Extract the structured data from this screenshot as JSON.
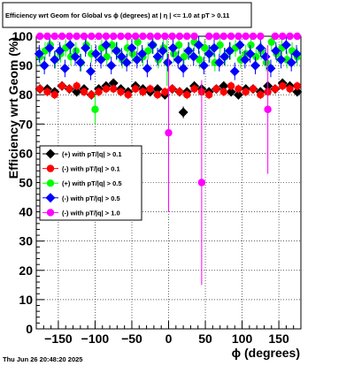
{
  "chart_data": {
    "type": "scatter",
    "title": "Efficiency wrt Geom for Global vs ϕ (degrees) at |  η  | <= 1.0 at pT > 0.11",
    "xlabel": "ϕ (degrees)",
    "ylabel": "Efficiency wrt Geom (%)",
    "xlim": [
      -180,
      180
    ],
    "ylim": [
      0,
      100
    ],
    "x_ticks": [
      -150,
      -100,
      -50,
      0,
      50,
      100,
      150
    ],
    "x_tick_labels": [
      "−150",
      "−100",
      "−50",
      "0",
      "50",
      "100",
      "150"
    ],
    "y_ticks": [
      0,
      10,
      20,
      30,
      40,
      50,
      60,
      70,
      80,
      90,
      100
    ],
    "y_tick_labels": [
      "0",
      "10",
      "20",
      "30",
      "40",
      "50",
      "60",
      "70",
      "80",
      "90",
      "100"
    ],
    "grid": true,
    "legend_position": "center-left",
    "footer": "Thu Jun 26 20:48:20 2025",
    "series": [
      {
        "name": "(+) with pT/|q| > 0.1",
        "color": "#000000",
        "marker": "diamond",
        "x": [
          -175,
          -165,
          -155,
          -145,
          -135,
          -125,
          -115,
          -105,
          -95,
          -85,
          -75,
          -65,
          -55,
          -45,
          -35,
          -25,
          -15,
          -5,
          5,
          15,
          20,
          25,
          35,
          45,
          55,
          65,
          75,
          85,
          95,
          105,
          115,
          125,
          135,
          145,
          155,
          165,
          175
        ],
        "y": [
          82,
          82,
          81,
          83,
          82,
          81,
          82,
          80,
          82,
          83,
          84,
          82,
          81,
          83,
          82,
          81,
          82,
          80,
          82,
          81,
          74,
          81,
          83,
          82,
          81,
          82,
          83,
          81,
          80,
          82,
          82,
          81,
          83,
          82,
          84,
          83,
          81
        ],
        "err": [
          1.5,
          1.5,
          1.5,
          1.5,
          1.5,
          1.5,
          1.5,
          1.5,
          1.5,
          1.5,
          1.5,
          1.5,
          1.5,
          1.5,
          1.5,
          1.5,
          1.5,
          1.5,
          1.5,
          1.5,
          2,
          1.5,
          1.5,
          1.5,
          1.5,
          1.5,
          1.5,
          1.5,
          1.5,
          1.5,
          1.5,
          1.5,
          1.5,
          1.5,
          1.5,
          1.5,
          1.5
        ]
      },
      {
        "name": "(-) with pT/|q| > 0.1",
        "color": "#ff0000",
        "marker": "circle",
        "x": [
          -175,
          -165,
          -155,
          -145,
          -135,
          -125,
          -115,
          -105,
          -95,
          -85,
          -75,
          -65,
          -55,
          -45,
          -35,
          -25,
          -15,
          -5,
          5,
          15,
          25,
          35,
          45,
          55,
          65,
          75,
          85,
          95,
          105,
          115,
          125,
          135,
          145,
          155,
          165,
          175
        ],
        "y": [
          82,
          81,
          80,
          83,
          82,
          83,
          81,
          80,
          81,
          82,
          82,
          81,
          80,
          82,
          81,
          82,
          80,
          81,
          82,
          81,
          80,
          82,
          81,
          80,
          82,
          81,
          83,
          82,
          81,
          82,
          80,
          81,
          82,
          83,
          82,
          83
        ],
        "err": [
          1.5,
          1.5,
          1.5,
          1.5,
          1.5,
          1.5,
          1.5,
          1.5,
          1.5,
          1.5,
          1.5,
          1.5,
          1.5,
          1.5,
          1.5,
          1.5,
          1.5,
          1.5,
          1.5,
          1.5,
          1.5,
          1.5,
          1.5,
          1.5,
          1.5,
          1.5,
          1.5,
          1.5,
          1.5,
          1.5,
          1.5,
          1.5,
          1.5,
          1.5,
          1.5,
          1.5
        ]
      },
      {
        "name": "(+) with pT/|q| > 0.5",
        "color": "#00ff00",
        "marker": "circle",
        "x": [
          -175,
          -168,
          -161,
          -154,
          -147,
          -140,
          -133,
          -126,
          -119,
          -112,
          -105,
          -100,
          -91,
          -84,
          -77,
          -70,
          -63,
          -56,
          -49,
          -42,
          -35,
          -28,
          -21,
          -14,
          -7,
          -2,
          7,
          14,
          21,
          28,
          35,
          42,
          49,
          56,
          63,
          70,
          77,
          84,
          91,
          98,
          105,
          112,
          119,
          126,
          133,
          140,
          147,
          154,
          161,
          168,
          175
        ],
        "y": [
          93,
          95,
          97,
          92,
          94,
          96,
          93,
          95,
          91,
          97,
          94,
          75,
          96,
          93,
          97,
          95,
          92,
          96,
          94,
          98,
          93,
          95,
          97,
          92,
          96,
          91,
          94,
          97,
          93,
          95,
          98,
          92,
          96,
          94,
          91,
          97,
          93,
          95,
          96,
          92,
          94,
          97,
          93,
          95,
          91,
          98,
          94,
          96,
          92,
          95,
          93
        ],
        "err": [
          3,
          3,
          3,
          3,
          3,
          3,
          3,
          3,
          3,
          3,
          3,
          5,
          3,
          3,
          3,
          3,
          3,
          3,
          3,
          3,
          3,
          3,
          3,
          3,
          3,
          8,
          3,
          3,
          3,
          3,
          3,
          3,
          3,
          3,
          3,
          3,
          3,
          3,
          3,
          3,
          3,
          3,
          3,
          3,
          3,
          3,
          3,
          3,
          3,
          3,
          3
        ]
      },
      {
        "name": "(-) with pT/|q| > 0.5",
        "color": "#0000ff",
        "marker": "diamond",
        "x": [
          -176,
          -169,
          -162,
          -155,
          -148,
          -141,
          -134,
          -127,
          -120,
          -113,
          -106,
          -99,
          -92,
          -85,
          -78,
          -71,
          -64,
          -57,
          -50,
          -43,
          -36,
          -29,
          -22,
          -15,
          -8,
          -1,
          6,
          13,
          20,
          27,
          34,
          41,
          48,
          55,
          62,
          69,
          76,
          83,
          90,
          97,
          104,
          111,
          118,
          125,
          132,
          139,
          146,
          153,
          160,
          167,
          174
        ],
        "y": [
          94,
          90,
          96,
          92,
          95,
          89,
          97,
          93,
          91,
          96,
          88,
          94,
          92,
          97,
          90,
          95,
          93,
          91,
          96,
          92,
          94,
          89,
          97,
          93,
          95,
          91,
          96,
          92,
          89,
          95,
          93,
          97,
          90,
          94,
          96,
          91,
          93,
          95,
          88,
          97,
          92,
          94,
          90,
          96,
          93,
          89,
          95,
          92,
          97,
          91,
          94
        ],
        "err": [
          3,
          3,
          3,
          3,
          3,
          3,
          3,
          3,
          3,
          3,
          3,
          3,
          3,
          3,
          3,
          3,
          3,
          3,
          3,
          3,
          3,
          3,
          3,
          3,
          3,
          3,
          3,
          3,
          3,
          3,
          3,
          3,
          3,
          3,
          3,
          3,
          3,
          3,
          3,
          3,
          3,
          3,
          3,
          3,
          3,
          3,
          3,
          3,
          3,
          3,
          3
        ]
      },
      {
        "name": "(-) with pT/|q| > 1.0",
        "color": "#ff00ff",
        "marker": "circle",
        "x": [
          -175,
          -165,
          -155,
          -145,
          -135,
          -125,
          -115,
          -105,
          -95,
          -85,
          -75,
          -65,
          -55,
          -45,
          -35,
          -25,
          -15,
          -5,
          0,
          5,
          15,
          25,
          35,
          45,
          55,
          65,
          75,
          85,
          95,
          105,
          115,
          125,
          135,
          145,
          155,
          165,
          175
        ],
        "y": [
          100,
          100,
          100,
          100,
          100,
          100,
          100,
          100,
          100,
          100,
          100,
          100,
          100,
          100,
          100,
          100,
          100,
          100,
          67,
          100,
          100,
          100,
          100,
          50,
          100,
          100,
          100,
          100,
          100,
          100,
          100,
          100,
          75,
          100,
          100,
          100,
          100
        ],
        "err": [
          0,
          0,
          0,
          0,
          0,
          0,
          0,
          0,
          0,
          0,
          0,
          0,
          0,
          0,
          0,
          0,
          0,
          0,
          27,
          0,
          0,
          0,
          0,
          35,
          0,
          0,
          0,
          0,
          0,
          0,
          0,
          0,
          22,
          0,
          0,
          0,
          0
        ]
      }
    ]
  }
}
